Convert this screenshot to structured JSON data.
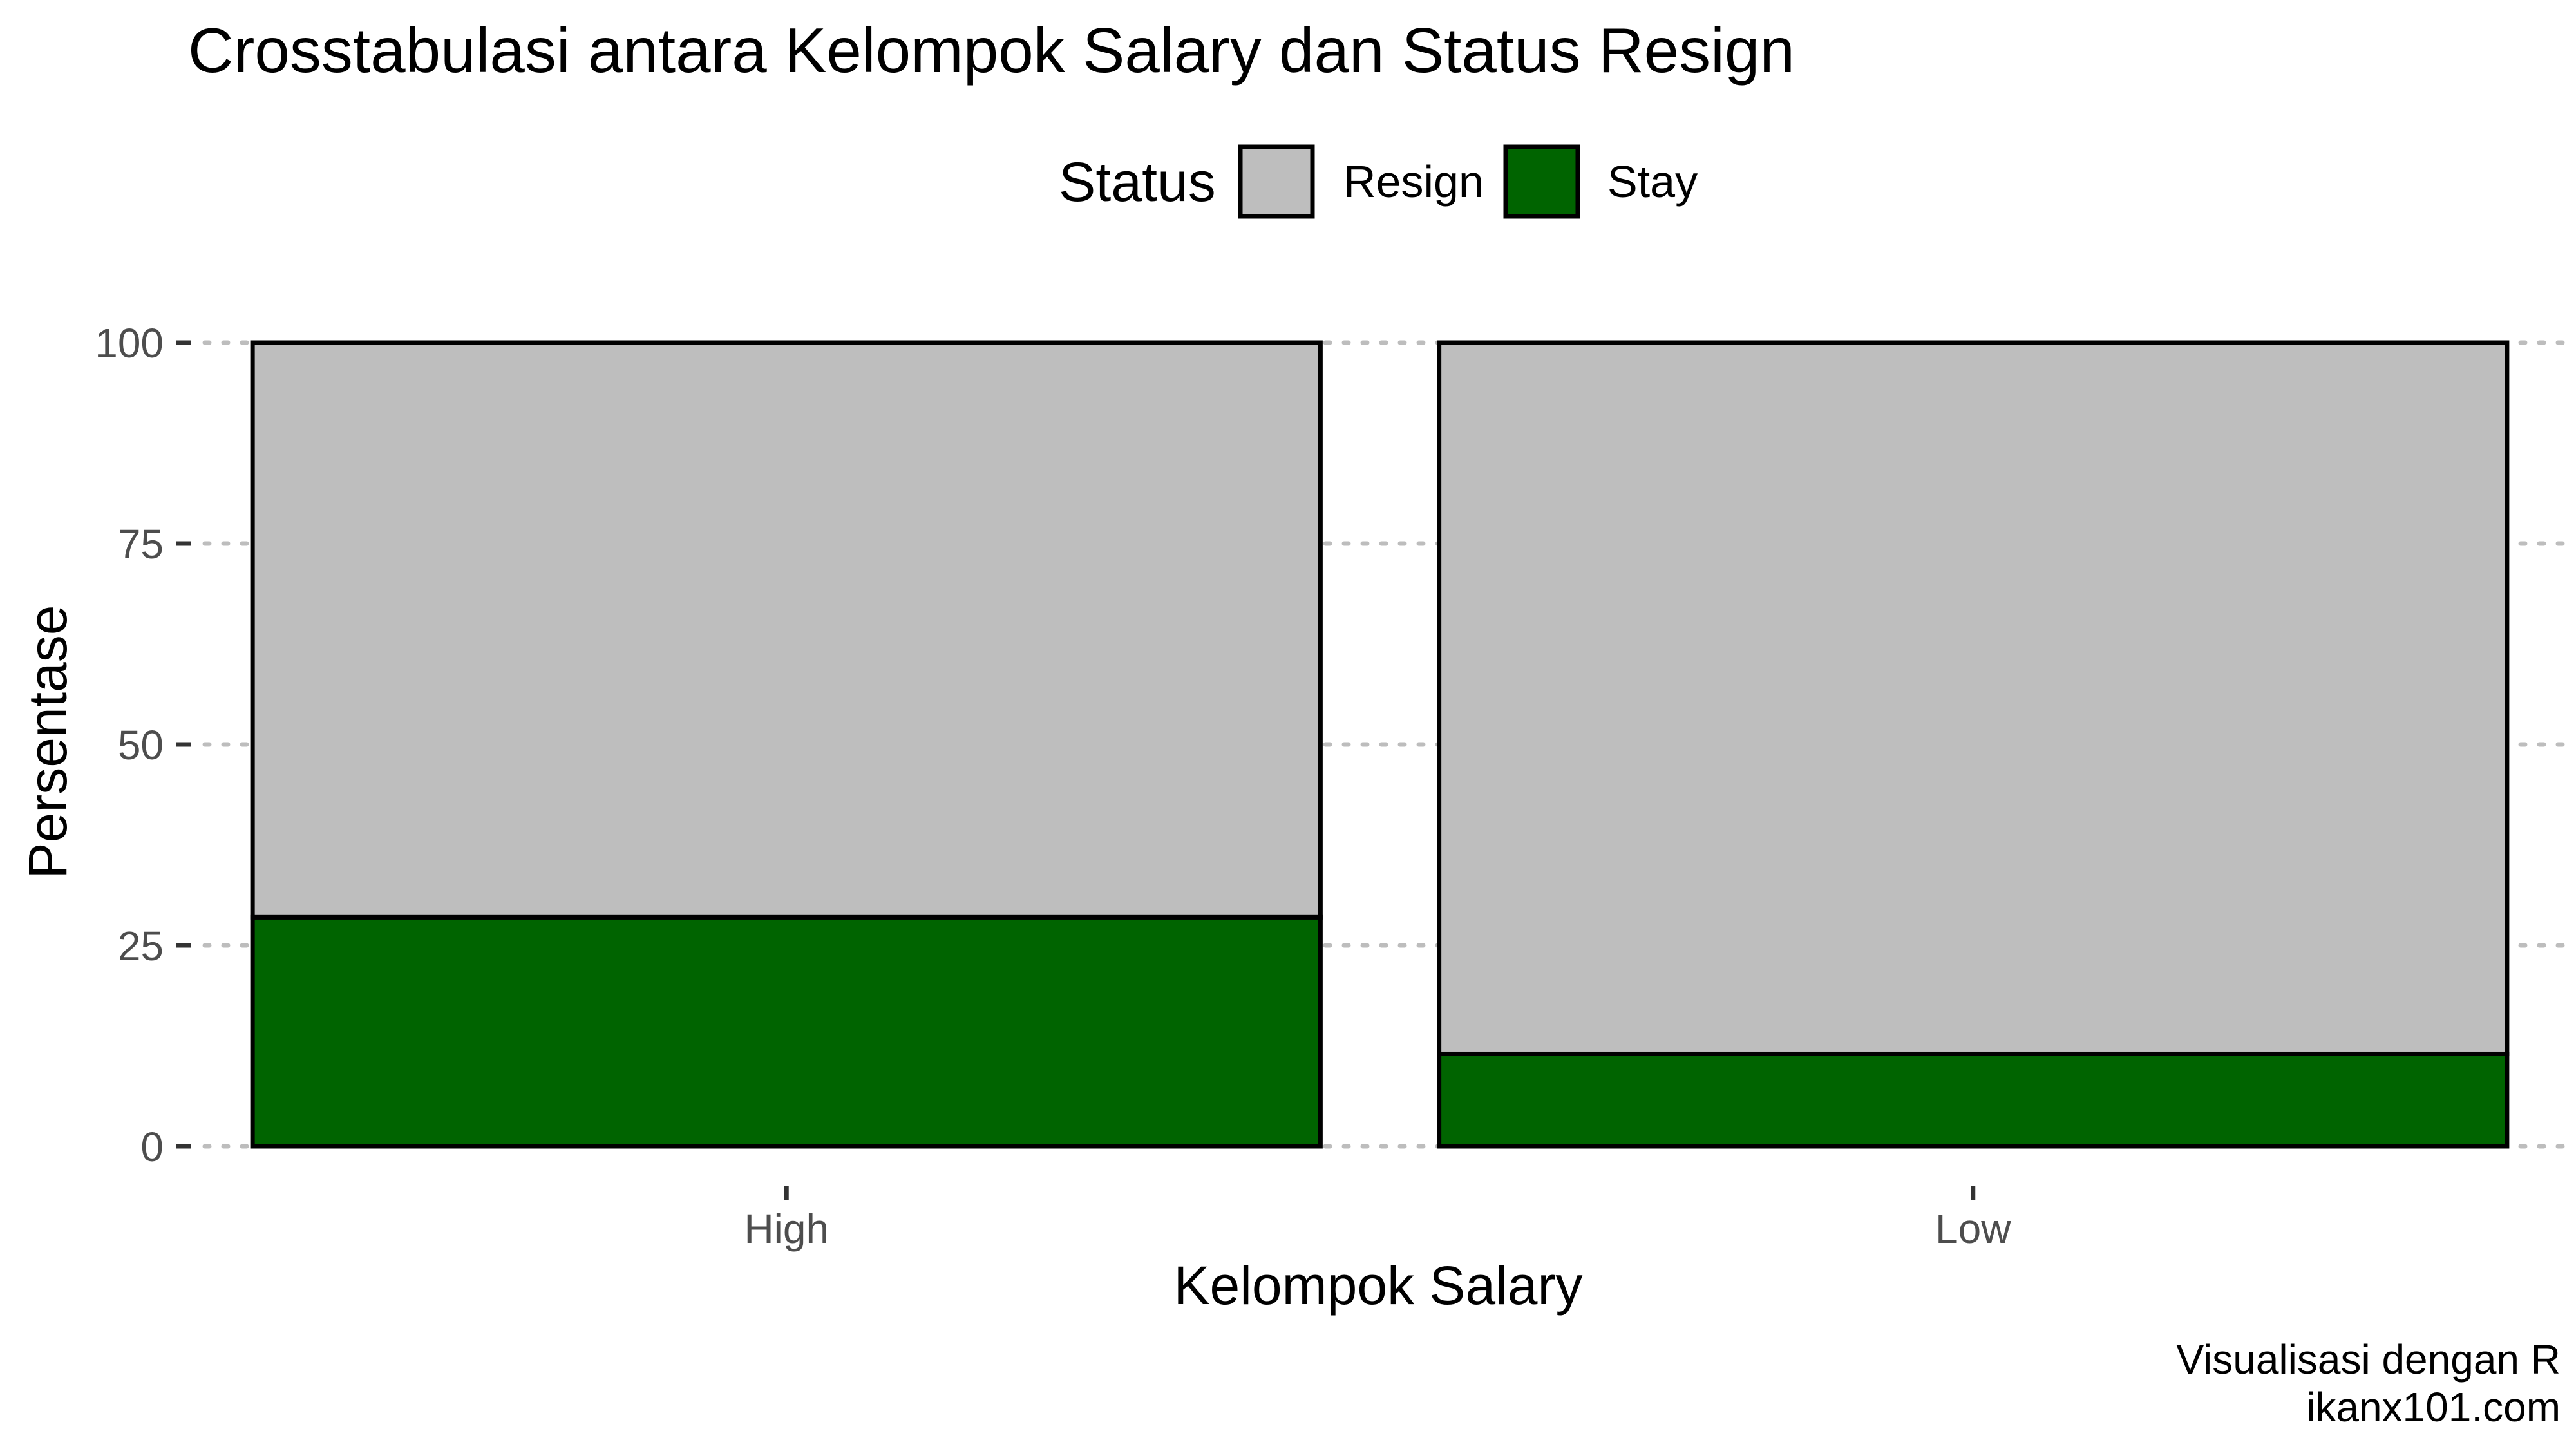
{
  "chart_data": {
    "type": "bar",
    "stacked": true,
    "title": "Crosstabulasi antara Kelompok Salary dan Status Resign",
    "xlabel": "Kelompok Salary",
    "ylabel": "Persentase",
    "categories": [
      "High",
      "Low"
    ],
    "series": [
      {
        "name": "Stay",
        "values": [
          28.5,
          11.5
        ],
        "color": "#006400"
      },
      {
        "name": "Resign",
        "values": [
          71.5,
          88.5
        ],
        "color": "#bebebe"
      }
    ],
    "ylim": [
      0,
      100
    ],
    "yticks": [
      "0",
      "25",
      "50",
      "75",
      "100"
    ],
    "legend": {
      "title": "Status",
      "position": "top",
      "items": [
        {
          "label": "Resign",
          "color": "#bebebe"
        },
        {
          "label": "Stay",
          "color": "#006400"
        }
      ]
    },
    "grid": {
      "major_y": true,
      "style": "dotted"
    },
    "caption": [
      "Visualisasi dengan R",
      "ikanx101.com"
    ]
  }
}
